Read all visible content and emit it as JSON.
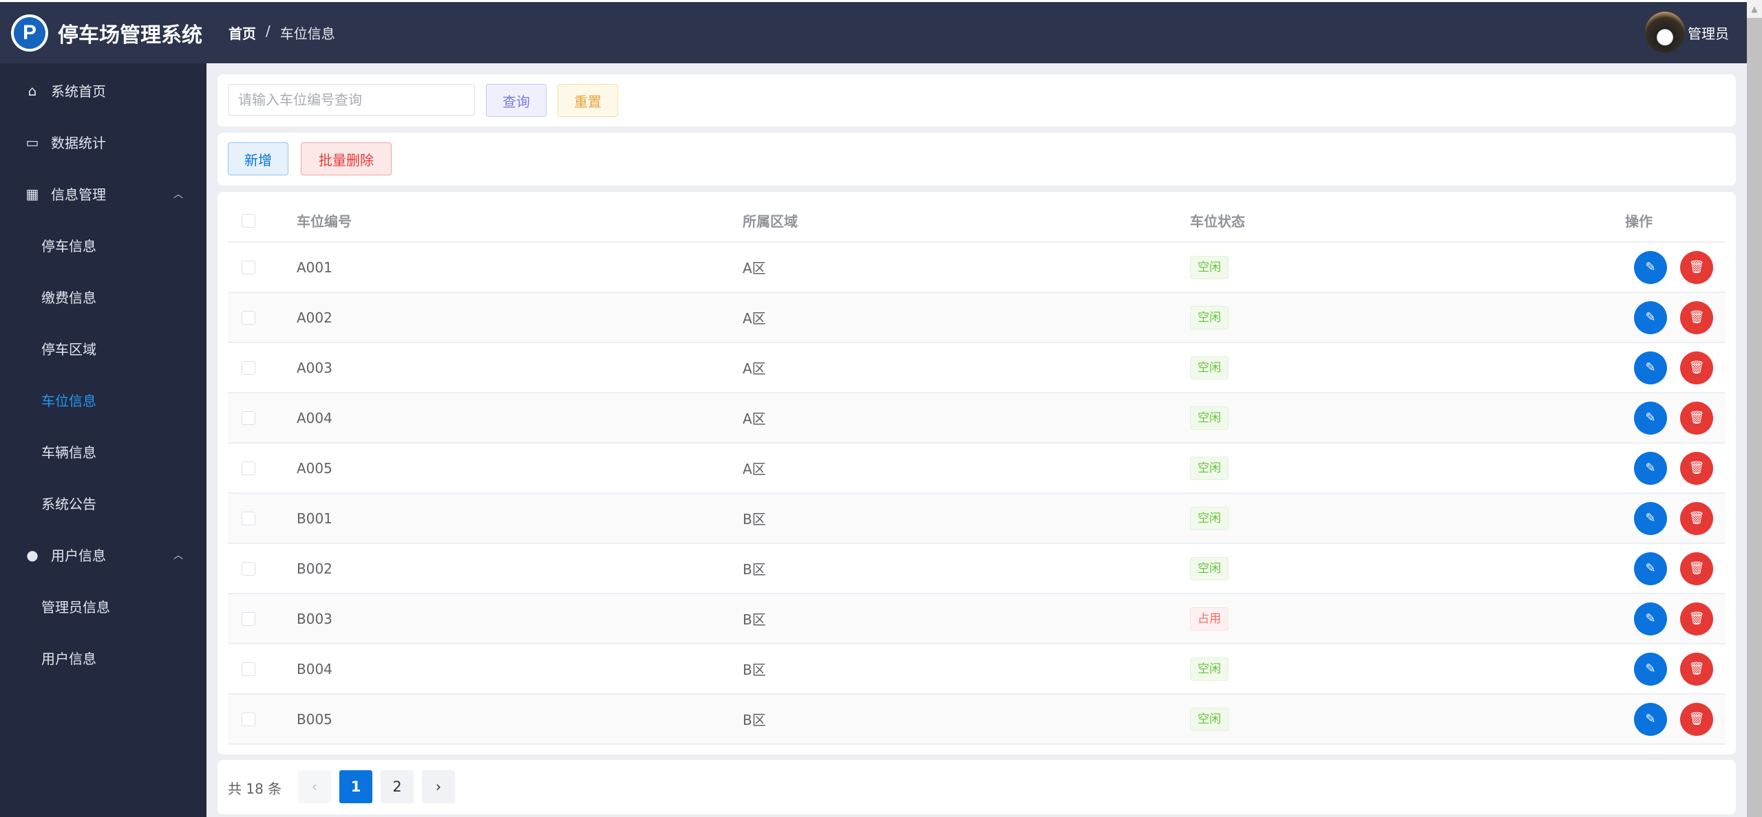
{
  "header": {
    "logo_letter": "P",
    "title": "停车场管理系统",
    "breadcrumb": [
      "首页",
      "车位信息"
    ],
    "separator": "/",
    "user_name": "管理员"
  },
  "sidebar": {
    "items": [
      {
        "label": "系统首页",
        "icon": "home-icon"
      },
      {
        "label": "数据统计",
        "icon": "monitor-icon"
      },
      {
        "label": "信息管理",
        "icon": "grid-icon",
        "expanded": true,
        "children": [
          "停车信息",
          "缴费信息",
          "停车区域",
          "车位信息",
          "车辆信息",
          "系统公告"
        ]
      },
      {
        "label": "用户信息",
        "icon": "user-icon",
        "expanded": true,
        "children": [
          "管理员信息",
          "用户信息"
        ]
      }
    ],
    "active": "车位信息"
  },
  "search": {
    "placeholder": "请输入车位编号查询",
    "value": "",
    "query_label": "查询",
    "reset_label": "重置"
  },
  "toolbar": {
    "add_label": "新增",
    "batch_delete_label": "批量删除"
  },
  "table": {
    "columns": [
      "车位编号",
      "所属区域",
      "车位状态",
      "操作"
    ],
    "rows": [
      {
        "code": "A001",
        "area": "A区",
        "status": "空闲"
      },
      {
        "code": "A002",
        "area": "A区",
        "status": "空闲"
      },
      {
        "code": "A003",
        "area": "A区",
        "status": "空闲"
      },
      {
        "code": "A004",
        "area": "A区",
        "status": "空闲"
      },
      {
        "code": "A005",
        "area": "A区",
        "status": "空闲"
      },
      {
        "code": "B001",
        "area": "B区",
        "status": "空闲"
      },
      {
        "code": "B002",
        "area": "B区",
        "status": "空闲"
      },
      {
        "code": "B003",
        "area": "B区",
        "status": "占用"
      },
      {
        "code": "B004",
        "area": "B区",
        "status": "空闲"
      },
      {
        "code": "B005",
        "area": "B区",
        "status": "空闲"
      }
    ]
  },
  "pagination": {
    "total_text": "共 18 条",
    "pages": [
      "1",
      "2"
    ],
    "current": "1",
    "prev": "‹",
    "next": "›"
  },
  "colors": {
    "header": "#2d344d",
    "sidebar": "#232a3f",
    "primary": "#0a73de",
    "danger": "#e53935",
    "free": "#67c23a",
    "busy": "#f56c6c"
  }
}
